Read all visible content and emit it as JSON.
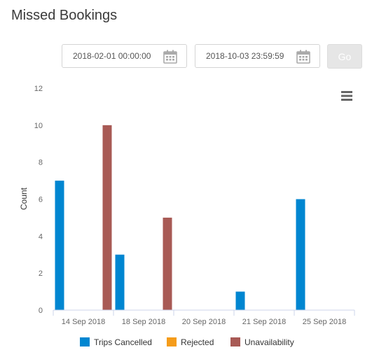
{
  "page": {
    "title": "Missed Bookings"
  },
  "filters": {
    "start_date": "2018-02-01 00:00:00",
    "end_date": "2018-10-03 23:59:59",
    "go_label": "Go",
    "start_icon": "calendar-icon",
    "end_icon": "calendar-icon"
  },
  "chart_menu": {
    "icon": "hamburger-menu-icon"
  },
  "chart_data": {
    "type": "bar",
    "categories": [
      "14 Sep 2018",
      "18 Sep 2018",
      "20 Sep 2018",
      "21 Sep 2018",
      "25 Sep 2018"
    ],
    "series": [
      {
        "name": "Trips Cancelled",
        "color": "#0086d1",
        "values": [
          7,
          3,
          0,
          1,
          6
        ]
      },
      {
        "name": "Rejected",
        "color": "#f59c1a",
        "values": [
          0,
          0,
          0,
          0,
          0
        ]
      },
      {
        "name": "Unavailability",
        "color": "#a85a55",
        "values": [
          10,
          5,
          0,
          0,
          0
        ]
      }
    ],
    "ylabel": "Count",
    "ylim": [
      0,
      12
    ],
    "yticks": [
      "0",
      "2",
      "4",
      "6",
      "8",
      "10",
      "12"
    ],
    "grid": false,
    "legend": "bottom-center"
  }
}
